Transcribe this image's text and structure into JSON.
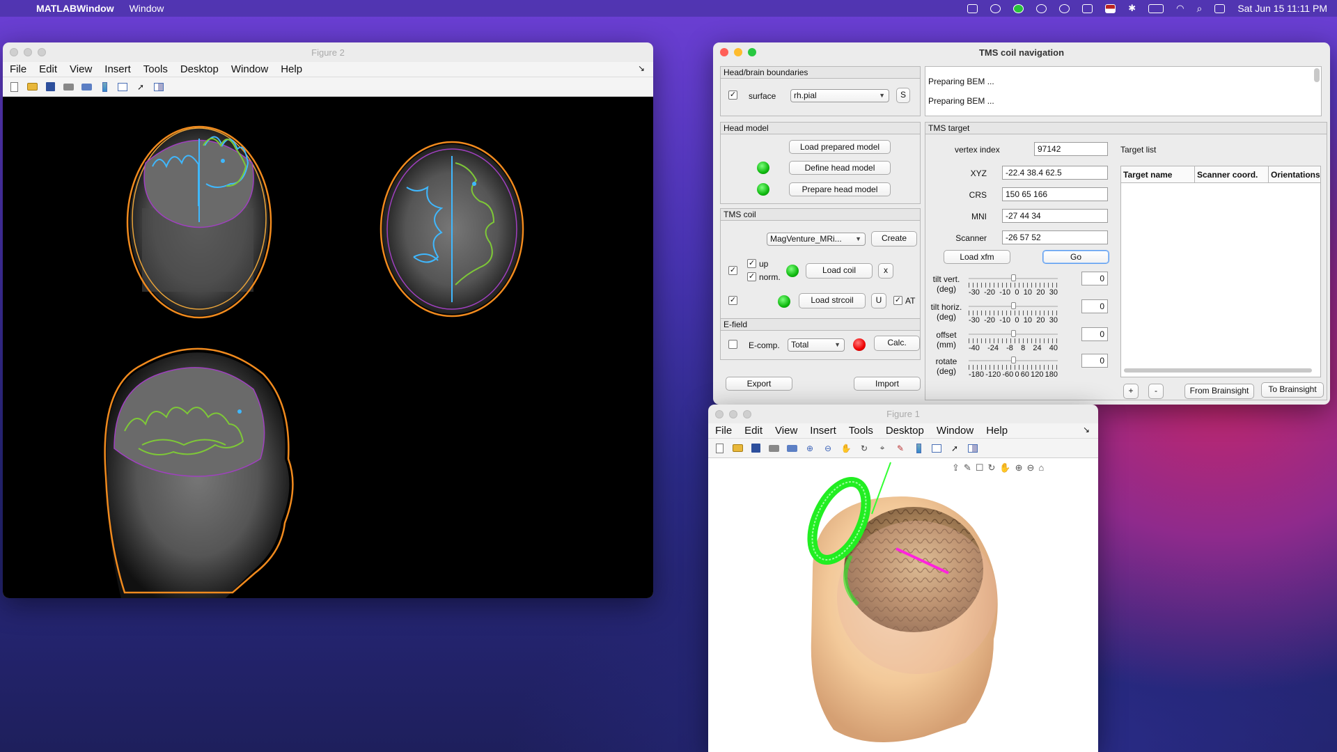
{
  "menubar": {
    "app_name": "MATLABWindow",
    "items": [
      "Window"
    ],
    "clock": "Sat Jun 15  11:11 PM"
  },
  "figure2": {
    "title": "Figure 2",
    "menu": [
      "File",
      "Edit",
      "View",
      "Insert",
      "Tools",
      "Desktop",
      "Window",
      "Help"
    ]
  },
  "figure1": {
    "title": "Figure 1",
    "menu": [
      "File",
      "Edit",
      "View",
      "Insert",
      "Tools",
      "Desktop",
      "Window",
      "Help"
    ]
  },
  "tms": {
    "title": "TMS coil navigation",
    "boundaries": {
      "title": "Head/brain boundaries",
      "surface_label": "surface",
      "surface_value": "rh.pial",
      "s_button": "S"
    },
    "log": [
      "Preparing BEM ...",
      "Preparing BEM ..."
    ],
    "head_model": {
      "title": "Head model",
      "load_prepared": "Load prepared model",
      "define": "Define head model",
      "prepare": "Prepare head model"
    },
    "coil": {
      "title": "TMS coil",
      "coil_value": "MagVenture_MRi...",
      "create": "Create",
      "up": "up",
      "norm": "norm.",
      "load_coil": "Load coil",
      "x_button": "x",
      "load_strcoil": "Load strcoil",
      "u_button": "U",
      "at": "AT"
    },
    "efield": {
      "title": "E-field",
      "ecomp": "E-comp.",
      "ecomp_value": "Total",
      "calc": "Calc."
    },
    "export": "Export",
    "import": "Import",
    "target": {
      "title": "TMS target",
      "vertex_label": "vertex index",
      "vertex_value": "97142",
      "xyz_label": "XYZ",
      "xyz_value": "-22.4  38.4  62.5",
      "crs_label": "CRS",
      "crs_value": "150  65 166",
      "mni_label": "MNI",
      "mni_value": "-27  44  34",
      "scanner_label": "Scanner",
      "scanner_value": "-26  57  52",
      "load_xfm": "Load xfm",
      "go": "Go",
      "sliders": [
        {
          "label1": "tilt vert.",
          "label2": "(deg)",
          "value": "0",
          "ticks": [
            "-30",
            "-20",
            "-10",
            "0",
            "10",
            "20",
            "30"
          ],
          "level": 0.5
        },
        {
          "label1": "tilt horiz.",
          "label2": "(deg)",
          "value": "0",
          "ticks": [
            "-30",
            "-20",
            "-10",
            "0",
            "10",
            "20",
            "30"
          ],
          "level": 0.5
        },
        {
          "label1": "offset",
          "label2": "(mm)",
          "value": "0",
          "ticks": [
            "-40",
            "-24",
            "-8",
            "8",
            "24",
            "40"
          ],
          "level": 0.5
        },
        {
          "label1": "rotate",
          "label2": "(deg)",
          "value": "0",
          "ticks": [
            "-180",
            "-120",
            "-60",
            "0",
            "60",
            "120",
            "180"
          ],
          "level": 0.5
        }
      ]
    },
    "target_list": {
      "title": "Target list",
      "columns": [
        "Target name",
        "Scanner coord.",
        "Orientations"
      ],
      "plus": "+",
      "minus": "-",
      "from_brainsight": "From Brainsight",
      "to_brainsight": "To Brainsight"
    }
  },
  "colors": {
    "green_indicator": "#11c011",
    "red_indicator": "#e00000",
    "coil": "#33ff33",
    "skin": "#f0c69a"
  }
}
